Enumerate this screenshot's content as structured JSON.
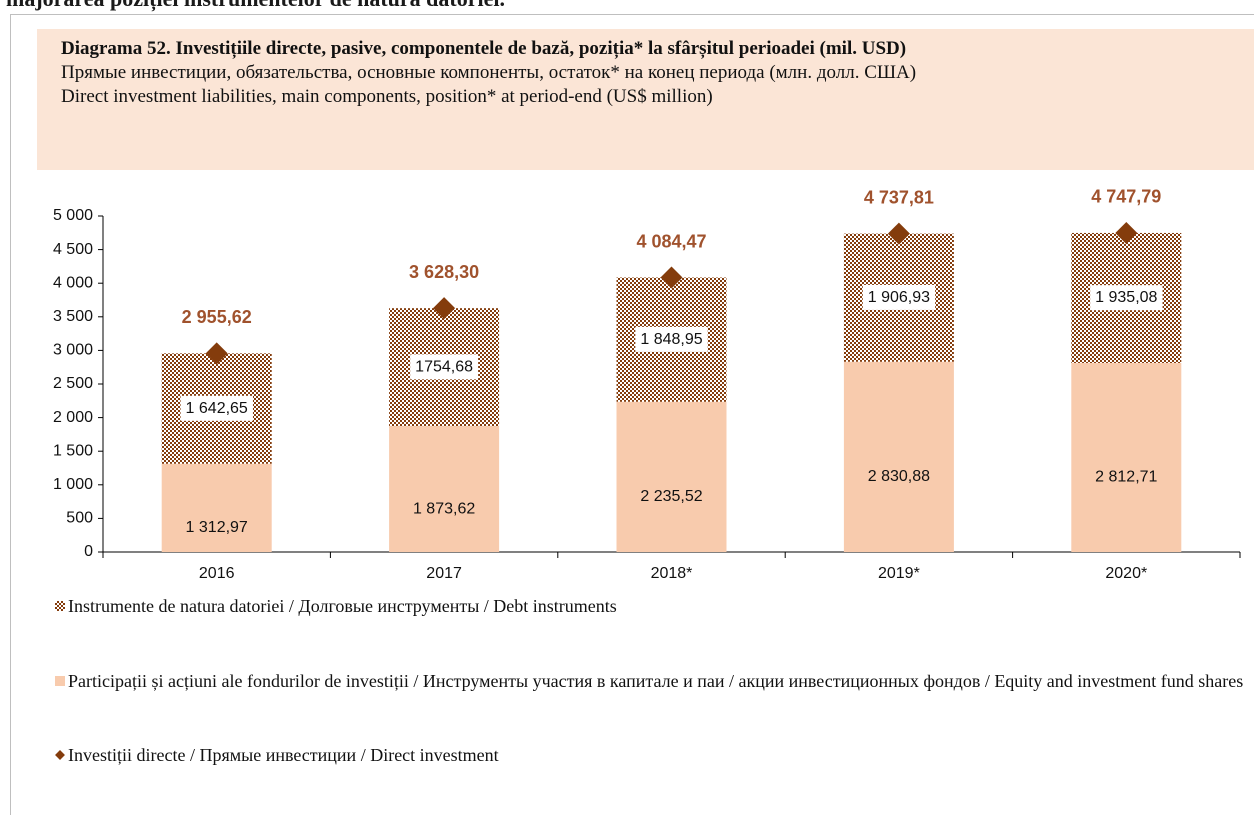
{
  "heading": "majorarea poziției instrumentelor de natura datoriei.",
  "chart_data": {
    "type": "bar",
    "stacked": true,
    "title": "Diagrama 52. Investițiile directe, pasive, componentele de bază, poziția* la sfârșitul perioadei (mil. USD)",
    "subtitle": [
      "Прямые инвестиции, обязательства, основные компоненты, остаток* на конец периода (млн. долл. США)",
      "Direct investment liabilities, main components, position* at period-end (US$ million)"
    ],
    "categories": [
      "2016",
      "2017",
      "2018*",
      "2019*",
      "2020*"
    ],
    "series": [
      {
        "name": "Participații și acțiuni ale fondurilor de investiții / Инструменты участия в капитале и паи / акции инвестиционных фондов / Equity and investment fund shares",
        "color": "#f8cbad",
        "values": [
          1312.97,
          1873.62,
          2235.52,
          2830.88,
          2812.71
        ],
        "value_labels": [
          "1 312,97",
          "1 873,62",
          "2 235,52",
          "2 830,88",
          "2 812,71"
        ]
      },
      {
        "name": "Instrumente de natura datoriei / Долговые инструменты / Debt instruments",
        "color": "#843c0c",
        "pattern": "dots",
        "values": [
          1642.65,
          1754.68,
          1848.95,
          1906.93,
          1935.08
        ],
        "value_labels": [
          "1 642,65",
          "1754,68",
          "1 848,95",
          "1 906,93",
          "1 935,08"
        ]
      },
      {
        "name": "Investiții directe / Прямые инвестиции / Direct investment",
        "type": "line",
        "show_line": false,
        "marker": "diamond",
        "color": "#843c0c",
        "values": [
          2955.62,
          3628.3,
          4084.47,
          4737.81,
          4747.79
        ],
        "value_labels": [
          "2 955,62",
          "3 628,30",
          "4 084,47",
          "4 737,81",
          "4 747,79"
        ]
      }
    ],
    "legend_order": [
      1,
      0,
      2
    ],
    "ylim": [
      0,
      5000
    ],
    "yticks": [
      0,
      500,
      {
        "value": 1000,
        "label": "1 000"
      },
      {
        "value": 1500,
        "label": "1 500"
      },
      {
        "value": 2000,
        "label": "2 000"
      },
      {
        "value": 2500,
        "label": "2 500"
      },
      {
        "value": 3000,
        "label": "3 000"
      },
      {
        "value": 3500,
        "label": "3 500"
      },
      {
        "value": 4000,
        "label": "4 000"
      },
      {
        "value": 4500,
        "label": "4 500"
      },
      {
        "value": 5000,
        "label": "5 000"
      }
    ],
    "grid": false
  }
}
